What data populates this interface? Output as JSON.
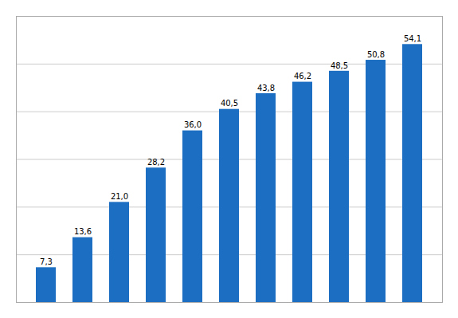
{
  "chart_data": {
    "type": "bar",
    "categories": [
      null,
      null,
      null,
      null,
      null,
      null,
      null,
      null,
      null,
      null,
      null
    ],
    "values": [
      7.3,
      13.6,
      21.0,
      28.2,
      36.0,
      40.5,
      43.8,
      46.2,
      48.5,
      50.8,
      54.1
    ],
    "value_labels": [
      "7,3",
      "13,6",
      "21,0",
      "28,2",
      "36,0",
      "40,5",
      "43,8",
      "46,2",
      "48,5",
      "50,8",
      "54,1"
    ],
    "data_labels": true,
    "color": "#1B6EC2",
    "ylim": [
      0,
      60
    ],
    "yticks": [
      0,
      10,
      20,
      30,
      40,
      50,
      60
    ],
    "grid": true,
    "tick_labels": false
  }
}
